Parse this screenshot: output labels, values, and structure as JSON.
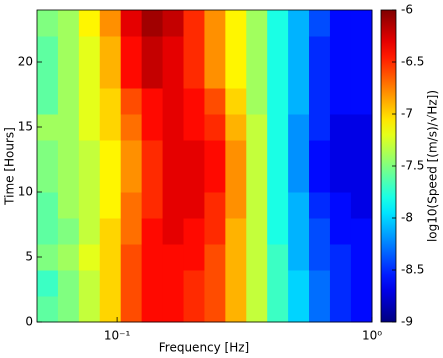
{
  "chart_data": {
    "type": "heatmap",
    "xlabel": "Frequency [Hz]",
    "ylabel": "Time [Hours]",
    "colorbar_label": "log10(Speed [(m/s)/√Hz])",
    "xscale": "log",
    "xlim": [
      0.0485,
      1
    ],
    "xticks": [
      {
        "value": 0.1,
        "label": "10⁻¹"
      },
      {
        "value": 1,
        "label": "10⁰"
      }
    ],
    "ylim": [
      0,
      24
    ],
    "yticks": [
      0,
      5,
      10,
      15,
      20
    ],
    "clim": [
      -9,
      -6
    ],
    "cticks": [
      -9,
      -8.5,
      -8,
      -7.5,
      -7,
      -6.5,
      -6
    ],
    "colormap": "jet",
    "x_bins": [
      0.0485,
      0.0586,
      0.0708,
      0.0855,
      0.1033,
      0.1248,
      0.1508,
      0.1822,
      0.2201,
      0.2659,
      0.3212,
      0.388,
      0.4687,
      0.5662,
      0.684,
      0.8263,
      1
    ],
    "y_bins": [
      0,
      2,
      4,
      6,
      8,
      10,
      12,
      14,
      16,
      18,
      20,
      22,
      24
    ],
    "values": [
      [
        -7.6,
        -7.5,
        -7.3,
        -7.0,
        -6.6,
        -6.4,
        -6.4,
        -6.5,
        -6.6,
        -6.9,
        -7.3,
        -7.7,
        -8.0,
        -8.3,
        -8.5,
        -8.6
      ],
      [
        -7.7,
        -7.5,
        -7.3,
        -7.0,
        -6.6,
        -6.4,
        -6.4,
        -6.5,
        -6.6,
        -6.9,
        -7.3,
        -7.7,
        -8.0,
        -8.3,
        -8.5,
        -8.6
      ],
      [
        -7.5,
        -7.4,
        -7.2,
        -7.0,
        -6.6,
        -6.4,
        -6.4,
        -6.4,
        -6.6,
        -6.9,
        -7.3,
        -7.7,
        -8.1,
        -8.4,
        -8.5,
        -8.6
      ],
      [
        -7.6,
        -7.5,
        -7.3,
        -7.0,
        -6.7,
        -6.4,
        -6.3,
        -6.4,
        -6.5,
        -6.9,
        -7.3,
        -7.8,
        -8.1,
        -8.4,
        -8.6,
        -8.6
      ],
      [
        -7.6,
        -7.4,
        -7.3,
        -7.1,
        -6.7,
        -6.5,
        -6.3,
        -6.3,
        -6.5,
        -6.8,
        -7.3,
        -7.8,
        -8.1,
        -8.5,
        -8.6,
        -8.7
      ],
      [
        -7.5,
        -7.4,
        -7.3,
        -7.1,
        -6.8,
        -6.5,
        -6.3,
        -6.3,
        -6.4,
        -6.8,
        -7.3,
        -7.8,
        -8.2,
        -8.6,
        -8.7,
        -8.7
      ],
      [
        -7.5,
        -7.4,
        -7.3,
        -7.1,
        -6.8,
        -6.5,
        -6.3,
        -6.3,
        -6.4,
        -6.8,
        -7.3,
        -7.8,
        -8.2,
        -8.6,
        -8.7,
        -8.7
      ],
      [
        -7.4,
        -7.4,
        -7.2,
        -7.0,
        -6.7,
        -6.4,
        -6.3,
        -6.4,
        -6.5,
        -6.9,
        -7.3,
        -7.8,
        -8.2,
        -8.5,
        -8.7,
        -8.7
      ],
      [
        -7.6,
        -7.4,
        -7.2,
        -7.0,
        -6.6,
        -6.4,
        -6.3,
        -6.4,
        -6.6,
        -7.0,
        -7.4,
        -7.8,
        -8.1,
        -8.5,
        -8.6,
        -8.6
      ],
      [
        -7.6,
        -7.4,
        -7.2,
        -6.9,
        -6.4,
        -6.2,
        -6.3,
        -6.5,
        -6.8,
        -7.1,
        -7.4,
        -7.8,
        -8.1,
        -8.5,
        -8.6,
        -8.6
      ],
      [
        -7.6,
        -7.4,
        -7.2,
        -6.9,
        -6.4,
        -6.2,
        -6.3,
        -6.5,
        -6.8,
        -7.1,
        -7.4,
        -7.8,
        -8.1,
        -8.5,
        -8.6,
        -8.6
      ],
      [
        -7.5,
        -7.4,
        -7.1,
        -6.8,
        -6.3,
        -6.1,
        -6.2,
        -6.5,
        -6.8,
        -7.1,
        -7.4,
        -7.8,
        -8.1,
        -8.4,
        -8.6,
        -8.6
      ]
    ]
  }
}
